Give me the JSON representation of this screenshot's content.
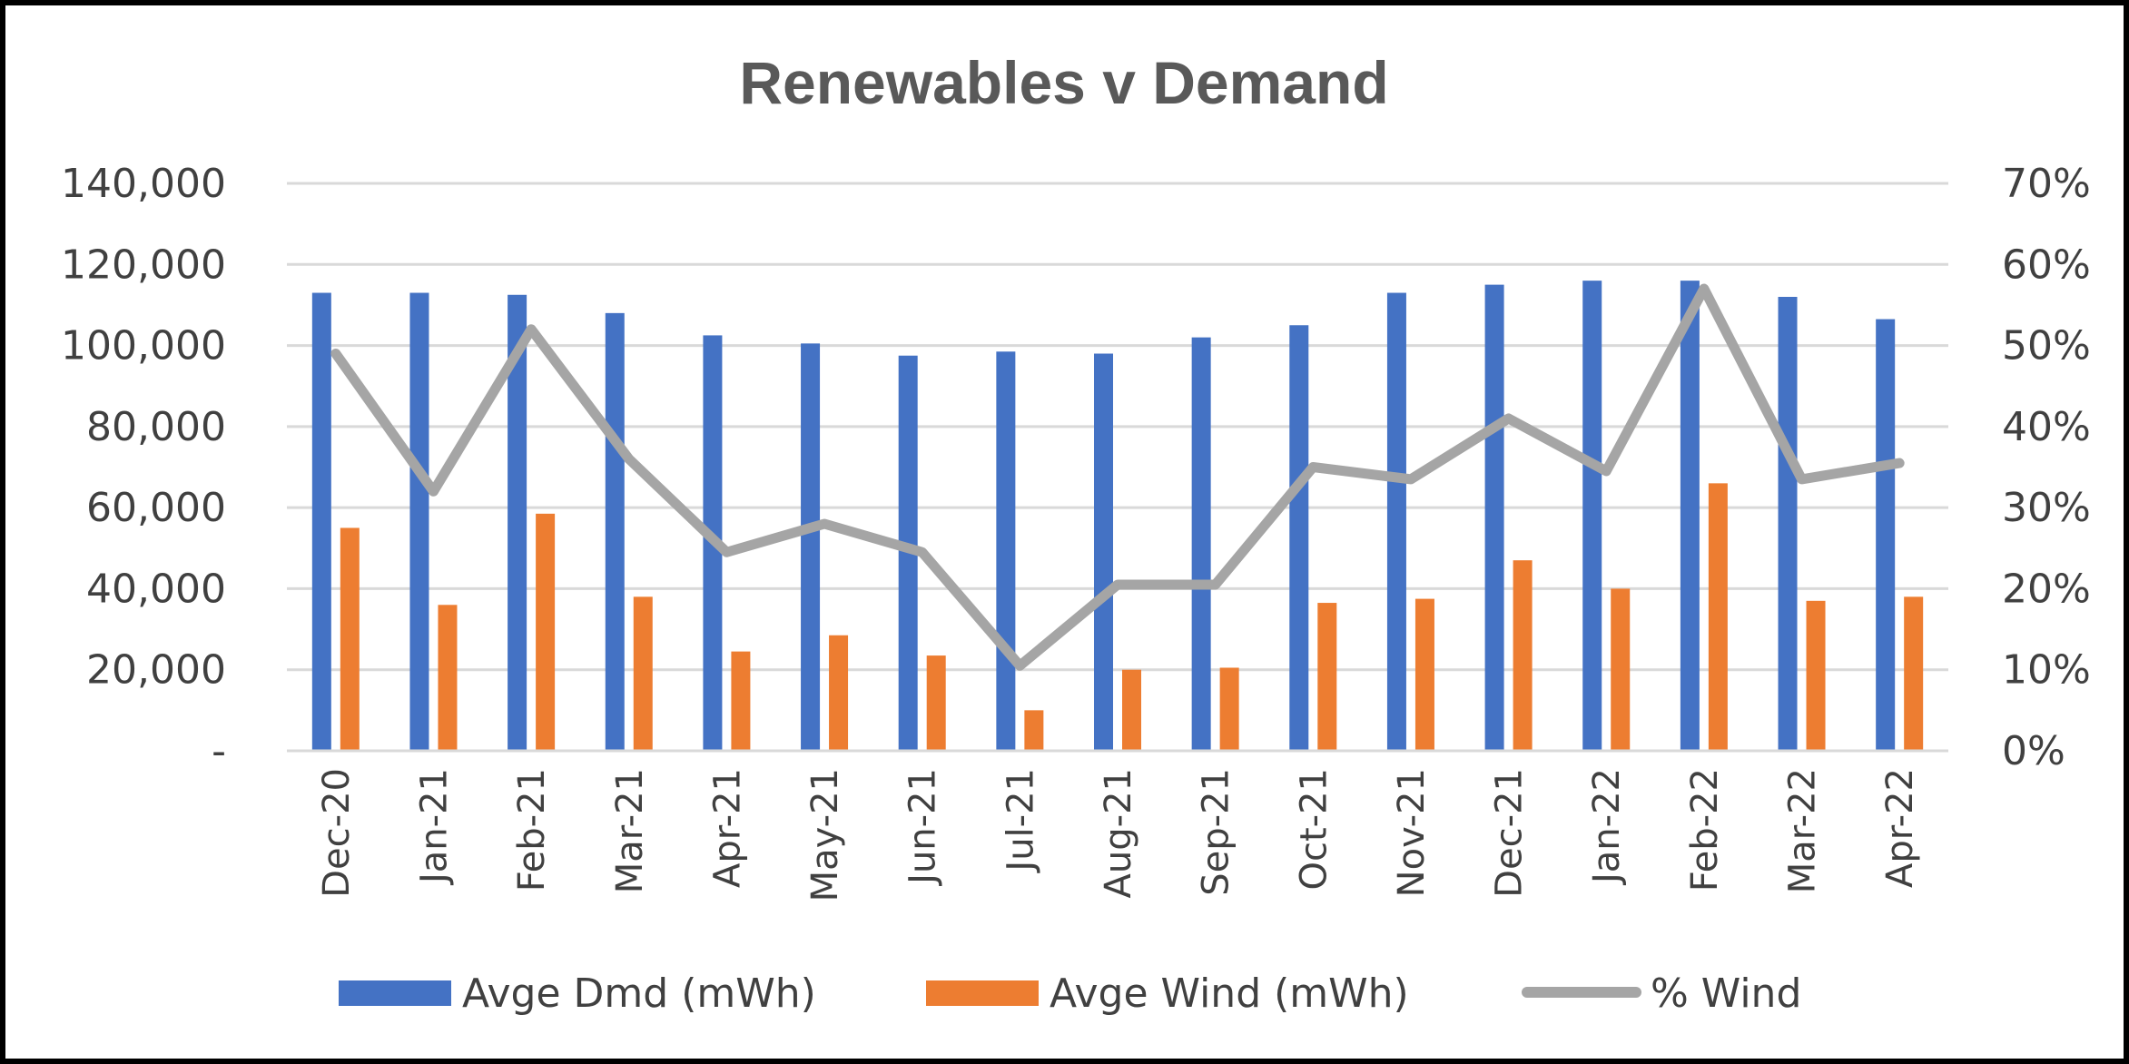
{
  "chart_data": {
    "type": "bar",
    "title": "Renewables v Demand",
    "categories": [
      "Dec-20",
      "Jan-21",
      "Feb-21",
      "Mar-21",
      "Apr-21",
      "May-21",
      "Jun-21",
      "Jul-21",
      "Aug-21",
      "Sep-21",
      "Oct-21",
      "Nov-21",
      "Dec-21",
      "Jan-22",
      "Feb-22",
      "Mar-22",
      "Apr-22"
    ],
    "series": [
      {
        "name": "Avge Dmd (mWh)",
        "type": "bar",
        "axis": "left",
        "color": "#4472C4",
        "values": [
          113000,
          113000,
          112500,
          108000,
          102500,
          100500,
          97500,
          98500,
          98000,
          102000,
          105000,
          113000,
          115000,
          116000,
          116000,
          112000,
          106500
        ]
      },
      {
        "name": "Avge Wind (mWh)",
        "type": "bar",
        "axis": "left",
        "color": "#ED7D31",
        "values": [
          55000,
          36000,
          58500,
          38000,
          24500,
          28500,
          23500,
          10000,
          20000,
          20500,
          36500,
          37500,
          47000,
          40000,
          66000,
          37000,
          38000
        ]
      },
      {
        "name": "% Wind",
        "type": "line",
        "axis": "right",
        "color": "#A5A5A5",
        "values": [
          0.49,
          0.32,
          0.52,
          0.36,
          0.245,
          0.28,
          0.245,
          0.105,
          0.205,
          0.205,
          0.35,
          0.335,
          0.41,
          0.345,
          0.57,
          0.335,
          0.355
        ]
      }
    ],
    "y_left": {
      "ylim": [
        0,
        140000
      ],
      "ticks": [
        0,
        20000,
        40000,
        60000,
        80000,
        100000,
        120000,
        140000
      ],
      "tick_labels": [
        "-",
        "20,000",
        "40,000",
        "60,000",
        "80,000",
        "100,000",
        "120,000",
        "140,000"
      ]
    },
    "y_right": {
      "ylim": [
        0,
        0.7
      ],
      "ticks": [
        0,
        0.1,
        0.2,
        0.3,
        0.4,
        0.5,
        0.6,
        0.7
      ],
      "tick_labels": [
        "0%",
        "10%",
        "20%",
        "30%",
        "40%",
        "50%",
        "60%",
        "70%"
      ]
    },
    "grid": true,
    "legend_position": "bottom"
  }
}
